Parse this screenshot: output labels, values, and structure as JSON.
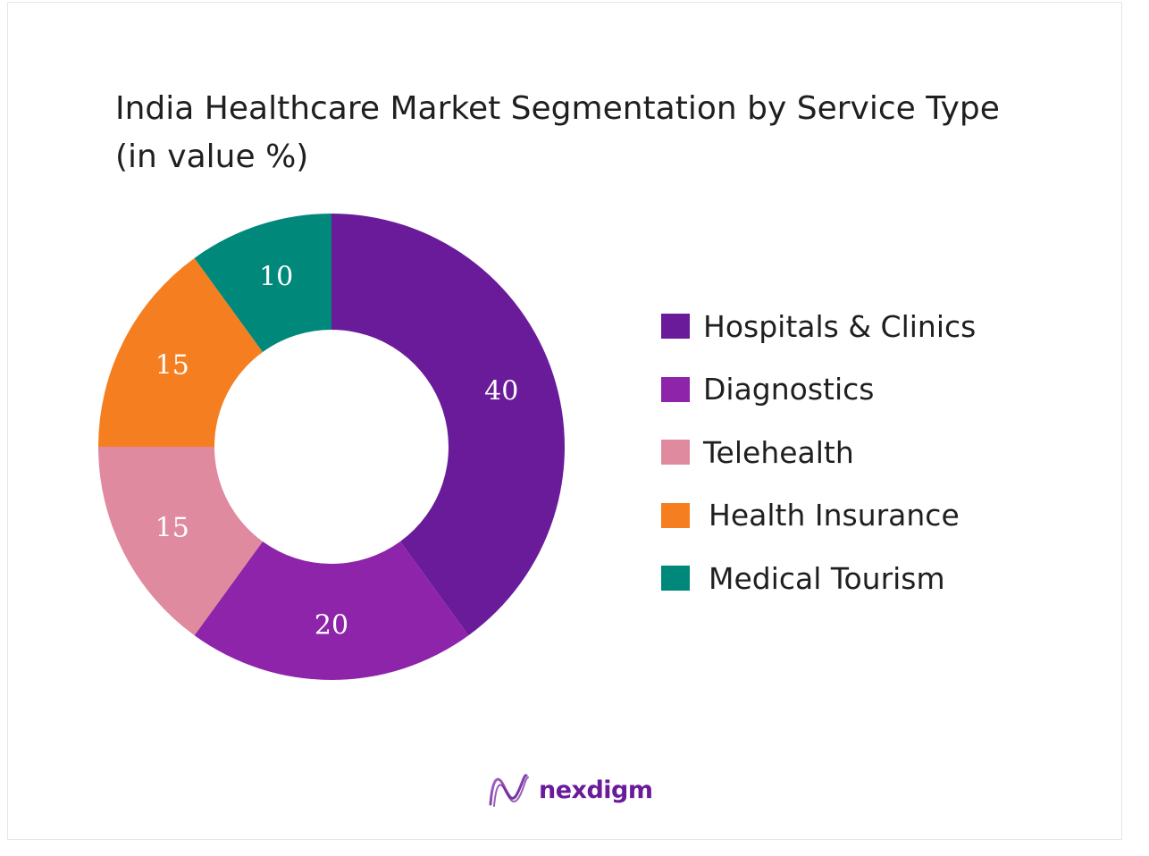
{
  "chart_data": {
    "type": "pie",
    "variant": "donut",
    "title": "India Healthcare Market Segmentation by Service Type (in value %)",
    "categories": [
      "Hospitals & Clinics",
      "Diagnostics",
      "Telehealth",
      "Health Insurance",
      "Medical Tourism"
    ],
    "values": [
      40,
      20,
      15,
      15,
      10
    ],
    "colors": [
      "#6a1b9a",
      "#8e24aa",
      "#e08aa0",
      "#f57f20",
      "#00897b"
    ],
    "value_labels": [
      "40",
      "20",
      "15",
      "15",
      "10"
    ],
    "legend_position": "right",
    "start": "top",
    "direction": "clockwise"
  },
  "brand": {
    "name": "nexdigm",
    "logo_icon": "nexdigm-wave-logo",
    "color": "#6a1b9a"
  }
}
